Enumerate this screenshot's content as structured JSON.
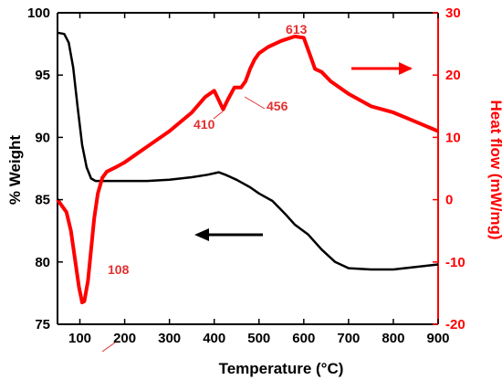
{
  "chart_data": {
    "type": "line",
    "xlabel": "Temperature (°C)",
    "ylabel_left": "% Weight",
    "ylabel_right": "Heat flow (mW/mg)",
    "xlim": [
      50,
      900
    ],
    "ylim_left": [
      75,
      100
    ],
    "ylim_right": [
      -20,
      30
    ],
    "x_ticks": [
      "100",
      "200",
      "300",
      "400",
      "500",
      "600",
      "700",
      "800",
      "900"
    ],
    "y_left_ticks": [
      "75",
      "80",
      "85",
      "90",
      "95",
      "100"
    ],
    "y_right_ticks": [
      "-20",
      "-10",
      "0",
      "10",
      "20",
      "30"
    ],
    "grid": false,
    "colors": {
      "weight": "#000000",
      "heat": "#ff0000"
    },
    "series": [
      {
        "axis": "left",
        "points": [
          [
            50,
            98.4
          ],
          [
            65,
            98.3
          ],
          [
            75,
            97.6
          ],
          [
            85,
            95.6
          ],
          [
            95,
            92.4
          ],
          [
            105,
            89.4
          ],
          [
            115,
            87.6
          ],
          [
            125,
            86.7
          ],
          [
            135,
            86.5
          ],
          [
            150,
            86.5
          ],
          [
            200,
            86.5
          ],
          [
            250,
            86.5
          ],
          [
            300,
            86.6
          ],
          [
            350,
            86.8
          ],
          [
            385,
            87.0
          ],
          [
            410,
            87.2
          ],
          [
            425,
            87.0
          ],
          [
            450,
            86.6
          ],
          [
            480,
            86.0
          ],
          [
            500,
            85.5
          ],
          [
            530,
            84.9
          ],
          [
            560,
            83.8
          ],
          [
            580,
            83.0
          ],
          [
            610,
            82.2
          ],
          [
            640,
            81.0
          ],
          [
            670,
            80.0
          ],
          [
            700,
            79.5
          ],
          [
            750,
            79.4
          ],
          [
            800,
            79.4
          ],
          [
            850,
            79.6
          ],
          [
            900,
            79.8
          ]
        ]
      },
      {
        "axis": "right",
        "points": [
          [
            50,
            0
          ],
          [
            60,
            -1
          ],
          [
            70,
            -2
          ],
          [
            80,
            -5
          ],
          [
            90,
            -10
          ],
          [
            98,
            -14
          ],
          [
            105,
            -16.5
          ],
          [
            110,
            -16.3
          ],
          [
            118,
            -13
          ],
          [
            125,
            -8
          ],
          [
            132,
            -3
          ],
          [
            140,
            1
          ],
          [
            150,
            3.5
          ],
          [
            160,
            4.5
          ],
          [
            180,
            5.2
          ],
          [
            200,
            6
          ],
          [
            250,
            8.5
          ],
          [
            300,
            11
          ],
          [
            350,
            14
          ],
          [
            380,
            16.5
          ],
          [
            400,
            17.5
          ],
          [
            410,
            16
          ],
          [
            420,
            14.5
          ],
          [
            430,
            16
          ],
          [
            445,
            18
          ],
          [
            460,
            18
          ],
          [
            470,
            19
          ],
          [
            480,
            21
          ],
          [
            490,
            22.5
          ],
          [
            500,
            23.5
          ],
          [
            520,
            24.5
          ],
          [
            550,
            25.5
          ],
          [
            580,
            26.2
          ],
          [
            600,
            26
          ],
          [
            615,
            23
          ],
          [
            625,
            21
          ],
          [
            640,
            20.5
          ],
          [
            660,
            19
          ],
          [
            700,
            17
          ],
          [
            750,
            15
          ],
          [
            800,
            14
          ],
          [
            850,
            12.5
          ],
          [
            900,
            11
          ]
        ]
      }
    ],
    "annotations": {
      "p108": "108",
      "p410": "410",
      "p456": "456",
      "p613": "613"
    }
  }
}
